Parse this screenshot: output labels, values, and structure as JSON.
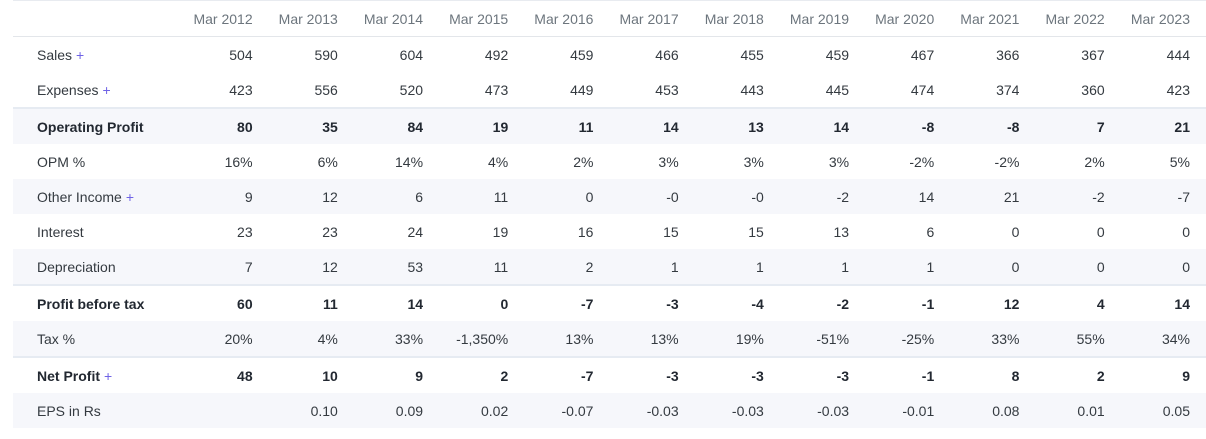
{
  "columns": [
    "",
    "Mar 2012",
    "Mar 2013",
    "Mar 2014",
    "Mar 2015",
    "Mar 2016",
    "Mar 2017",
    "Mar 2018",
    "Mar 2019",
    "Mar 2020",
    "Mar 2021",
    "Mar 2022",
    "Mar 2023"
  ],
  "expand_symbol": "+",
  "rows": [
    {
      "label": "Sales",
      "expandable": true,
      "bold": false,
      "stripe": false,
      "separator_above": false,
      "values": [
        "504",
        "590",
        "604",
        "492",
        "459",
        "466",
        "455",
        "459",
        "467",
        "366",
        "367",
        "444"
      ]
    },
    {
      "label": "Expenses",
      "expandable": true,
      "bold": false,
      "stripe": false,
      "separator_above": false,
      "values": [
        "423",
        "556",
        "520",
        "473",
        "449",
        "453",
        "443",
        "445",
        "474",
        "374",
        "360",
        "423"
      ]
    },
    {
      "label": "Operating Profit",
      "expandable": false,
      "bold": true,
      "stripe": true,
      "separator_above": true,
      "values": [
        "80",
        "35",
        "84",
        "19",
        "11",
        "14",
        "13",
        "14",
        "-8",
        "-8",
        "7",
        "21"
      ]
    },
    {
      "label": "OPM %",
      "expandable": false,
      "bold": false,
      "stripe": false,
      "separator_above": false,
      "values": [
        "16%",
        "6%",
        "14%",
        "4%",
        "2%",
        "3%",
        "3%",
        "3%",
        "-2%",
        "-2%",
        "2%",
        "5%"
      ]
    },
    {
      "label": "Other Income",
      "expandable": true,
      "bold": false,
      "stripe": true,
      "separator_above": false,
      "values": [
        "9",
        "12",
        "6",
        "11",
        "0",
        "-0",
        "-0",
        "-2",
        "14",
        "21",
        "-2",
        "-7"
      ]
    },
    {
      "label": "Interest",
      "expandable": false,
      "bold": false,
      "stripe": false,
      "separator_above": false,
      "values": [
        "23",
        "23",
        "24",
        "19",
        "16",
        "15",
        "15",
        "13",
        "6",
        "0",
        "0",
        "0"
      ]
    },
    {
      "label": "Depreciation",
      "expandable": false,
      "bold": false,
      "stripe": true,
      "separator_above": false,
      "values": [
        "7",
        "12",
        "53",
        "11",
        "2",
        "1",
        "1",
        "1",
        "1",
        "0",
        "0",
        "0"
      ]
    },
    {
      "label": "Profit before tax",
      "expandable": false,
      "bold": true,
      "stripe": false,
      "separator_above": true,
      "values": [
        "60",
        "11",
        "14",
        "0",
        "-7",
        "-3",
        "-4",
        "-2",
        "-1",
        "12",
        "4",
        "14"
      ]
    },
    {
      "label": "Tax %",
      "expandable": false,
      "bold": false,
      "stripe": true,
      "separator_above": false,
      "values": [
        "20%",
        "4%",
        "33%",
        "-1,350%",
        "13%",
        "13%",
        "19%",
        "-51%",
        "-25%",
        "33%",
        "55%",
        "34%"
      ]
    },
    {
      "label": "Net Profit",
      "expandable": true,
      "bold": true,
      "stripe": false,
      "separator_above": true,
      "values": [
        "48",
        "10",
        "9",
        "2",
        "-7",
        "-3",
        "-3",
        "-3",
        "-1",
        "8",
        "2",
        "9"
      ]
    },
    {
      "label": "EPS in Rs",
      "expandable": false,
      "bold": false,
      "stripe": true,
      "separator_above": false,
      "values": [
        "",
        "0.10",
        "0.09",
        "0.02",
        "-0.07",
        "-0.03",
        "-0.03",
        "-0.03",
        "-0.01",
        "0.08",
        "0.01",
        "0.05"
      ]
    }
  ],
  "colors": {
    "expand_accent": "#6f63e6",
    "stripe_bg": "#f6f7fb",
    "header_text": "#6c757d",
    "separator": "#e6ebf2"
  }
}
